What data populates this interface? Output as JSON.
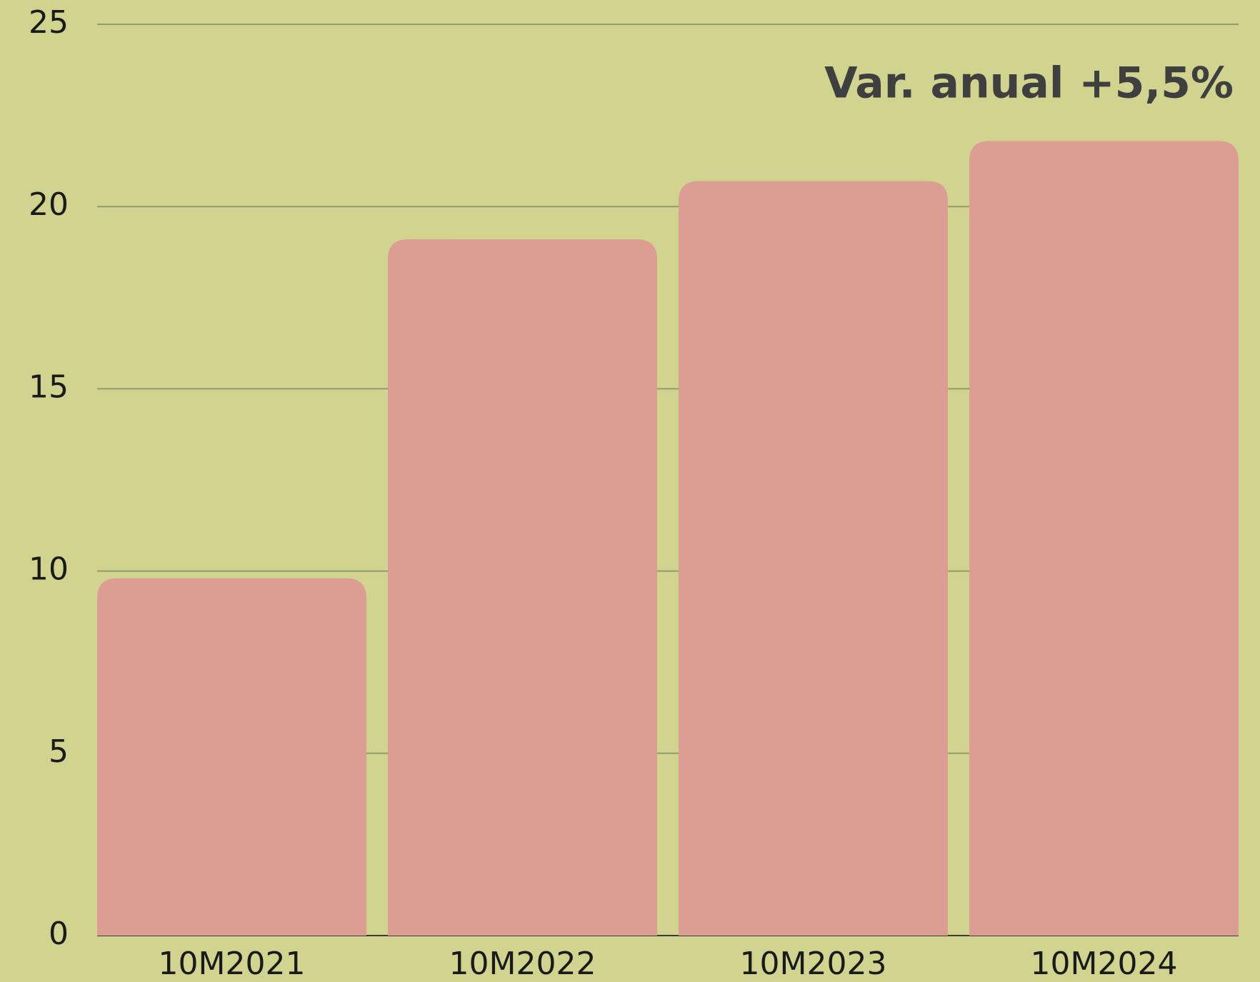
{
  "chart_data": {
    "type": "bar",
    "annotation": "Var. anual +5,5%",
    "categories": [
      "10M2021",
      "10M2022",
      "10M2023",
      "10M2024"
    ],
    "values": [
      9.8,
      19.1,
      20.7,
      21.8
    ],
    "color": "#dc9e93",
    "ylim": [
      0,
      25
    ],
    "yticks": [
      0,
      5,
      10,
      15,
      20,
      25
    ],
    "grid": true
  }
}
